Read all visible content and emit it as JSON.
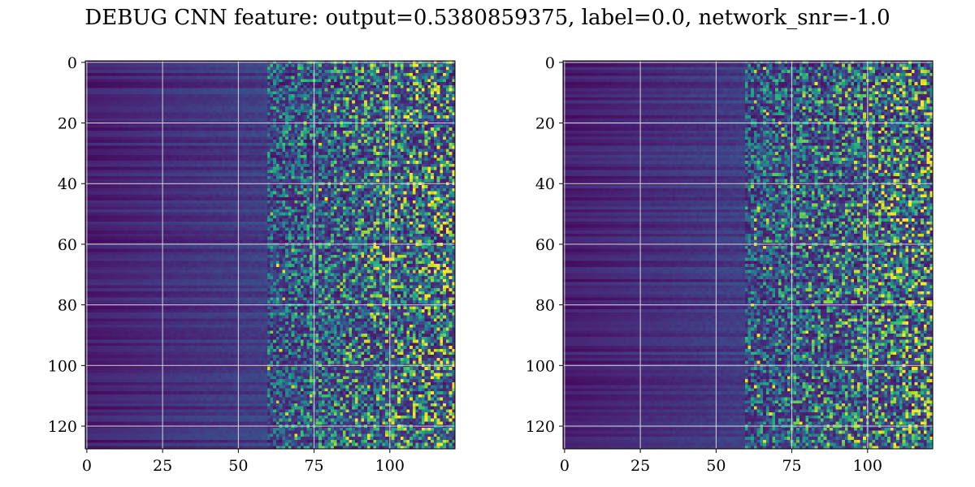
{
  "title": "DEBUG CNN feature: output=0.5380859375, label=0.0, network_snr=-1.0",
  "colormap": "viridis",
  "colors": {
    "grid": "#d9d9d9",
    "frame": "#000000",
    "background": "#ffffff"
  },
  "chart_data": [
    {
      "type": "heatmap",
      "title": "",
      "xlabel": "",
      "ylabel": "",
      "xlim": [
        -0.5,
        121.5
      ],
      "ylim": [
        127.5,
        -0.5
      ],
      "x_ticks": [
        0,
        25,
        50,
        75,
        100
      ],
      "y_ticks": [
        0,
        20,
        40,
        60,
        80,
        100,
        120
      ],
      "grid": true,
      "n_rows": 128,
      "n_cols": 122,
      "pattern": "smooth low values across the first ~60 columns, increasingly noisy high values toward the right",
      "seed": 7
    },
    {
      "type": "heatmap",
      "title": "",
      "xlabel": "",
      "ylabel": "",
      "xlim": [
        -0.5,
        121.5
      ],
      "ylim": [
        127.5,
        -0.5
      ],
      "x_ticks": [
        0,
        25,
        50,
        75,
        100
      ],
      "y_ticks": [
        0,
        20,
        40,
        60,
        80,
        100,
        120
      ],
      "grid": true,
      "n_rows": 128,
      "n_cols": 122,
      "pattern": "smooth low values across the first ~60 columns, increasingly noisy high values toward the right",
      "seed": 19
    }
  ]
}
